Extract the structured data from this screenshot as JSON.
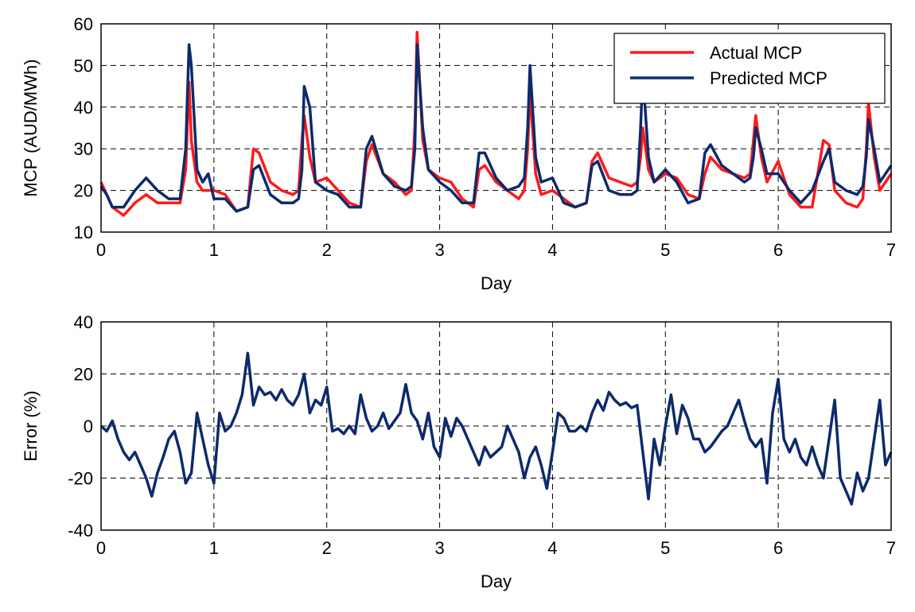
{
  "chart_data": [
    {
      "type": "line",
      "xlabel": "Day",
      "ylabel": "MCP (AUD/MWh)",
      "xlim": [
        0,
        7
      ],
      "ylim": [
        10,
        60
      ],
      "xticks": [
        0,
        1,
        2,
        3,
        4,
        5,
        6,
        7
      ],
      "yticks": [
        10,
        20,
        30,
        40,
        50,
        60
      ],
      "grid": true,
      "legend": "upper right",
      "x": [
        0,
        0.05,
        0.1,
        0.2,
        0.3,
        0.4,
        0.5,
        0.6,
        0.7,
        0.75,
        0.78,
        0.8,
        0.85,
        0.9,
        0.95,
        1.0,
        1.1,
        1.2,
        1.3,
        1.35,
        1.4,
        1.5,
        1.6,
        1.7,
        1.75,
        1.78,
        1.8,
        1.85,
        1.9,
        2.0,
        2.1,
        2.2,
        2.3,
        2.35,
        2.4,
        2.5,
        2.6,
        2.7,
        2.75,
        2.78,
        2.8,
        2.85,
        2.9,
        3.0,
        3.1,
        3.2,
        3.3,
        3.35,
        3.4,
        3.5,
        3.6,
        3.7,
        3.75,
        3.78,
        3.8,
        3.85,
        3.9,
        4.0,
        4.1,
        4.2,
        4.3,
        4.35,
        4.4,
        4.5,
        4.6,
        4.7,
        4.75,
        4.78,
        4.8,
        4.85,
        4.9,
        5.0,
        5.1,
        5.2,
        5.3,
        5.35,
        5.4,
        5.5,
        5.6,
        5.7,
        5.75,
        5.78,
        5.8,
        5.85,
        5.9,
        6.0,
        6.1,
        6.2,
        6.3,
        6.4,
        6.45,
        6.5,
        6.6,
        6.7,
        6.75,
        6.78,
        6.8,
        6.85,
        6.9,
        7.0
      ],
      "series": [
        {
          "name": "Actual MCP",
          "color": "#ff1a1a",
          "values": [
            22,
            19,
            16,
            14,
            17,
            19,
            17,
            17,
            17,
            25,
            46,
            32,
            22,
            20,
            20,
            20,
            19,
            15,
            16,
            30,
            29,
            22,
            20,
            19,
            20,
            32,
            38,
            28,
            22,
            23,
            20,
            17,
            16,
            27,
            31,
            24,
            22,
            19,
            20,
            35,
            58,
            32,
            25,
            23,
            22,
            18,
            16,
            25,
            26,
            22,
            20,
            18,
            20,
            30,
            44,
            24,
            19,
            20,
            18,
            16,
            17,
            27,
            29,
            23,
            22,
            21,
            22,
            28,
            35,
            25,
            22,
            24,
            23,
            19,
            18,
            24,
            28,
            25,
            24,
            23,
            24,
            32,
            38,
            28,
            22,
            27,
            19,
            16,
            16,
            32,
            31,
            20,
            17,
            16,
            18,
            30,
            41,
            28,
            20,
            24
          ]
        },
        {
          "name": "Predicted MCP",
          "color": "#0d2a6b",
          "values": [
            21,
            19,
            16,
            16,
            20,
            23,
            20,
            18,
            18,
            30,
            55,
            50,
            25,
            22,
            24,
            18,
            18,
            15,
            16,
            25,
            26,
            19,
            17,
            17,
            18,
            25,
            45,
            40,
            22,
            20,
            19,
            16,
            16,
            30,
            33,
            24,
            21,
            20,
            21,
            30,
            55,
            35,
            25,
            22,
            20,
            17,
            17,
            29,
            29,
            23,
            20,
            21,
            23,
            35,
            50,
            28,
            22,
            23,
            17,
            16,
            17,
            26,
            27,
            20,
            19,
            19,
            20,
            35,
            48,
            28,
            22,
            25,
            22,
            17,
            18,
            29,
            31,
            26,
            24,
            22,
            23,
            28,
            35,
            30,
            24,
            24,
            20,
            17,
            20,
            27,
            30,
            22,
            20,
            19,
            21,
            28,
            37,
            30,
            22,
            26
          ]
        }
      ]
    },
    {
      "type": "line",
      "xlabel": "Day",
      "ylabel": "Error (%)",
      "xlim": [
        0,
        7
      ],
      "ylim": [
        -40,
        40
      ],
      "xticks": [
        0,
        1,
        2,
        3,
        4,
        5,
        6,
        7
      ],
      "yticks": [
        -40,
        -20,
        0,
        20,
        40
      ],
      "grid": true,
      "color": "#0d2a6b",
      "x": [
        0,
        0.05,
        0.1,
        0.15,
        0.2,
        0.25,
        0.3,
        0.35,
        0.4,
        0.45,
        0.5,
        0.55,
        0.6,
        0.65,
        0.7,
        0.75,
        0.8,
        0.85,
        0.9,
        0.95,
        1.0,
        1.05,
        1.1,
        1.15,
        1.2,
        1.25,
        1.3,
        1.35,
        1.4,
        1.45,
        1.5,
        1.55,
        1.6,
        1.65,
        1.7,
        1.75,
        1.8,
        1.85,
        1.9,
        1.95,
        2.0,
        2.05,
        2.1,
        2.15,
        2.2,
        2.25,
        2.3,
        2.35,
        2.4,
        2.45,
        2.5,
        2.55,
        2.6,
        2.65,
        2.7,
        2.75,
        2.8,
        2.85,
        2.9,
        2.95,
        3.0,
        3.05,
        3.1,
        3.15,
        3.2,
        3.25,
        3.3,
        3.35,
        3.4,
        3.45,
        3.5,
        3.55,
        3.6,
        3.65,
        3.7,
        3.75,
        3.8,
        3.85,
        3.9,
        3.95,
        4.0,
        4.05,
        4.1,
        4.15,
        4.2,
        4.25,
        4.3,
        4.35,
        4.4,
        4.45,
        4.5,
        4.55,
        4.6,
        4.65,
        4.7,
        4.75,
        4.8,
        4.85,
        4.9,
        4.95,
        5.0,
        5.05,
        5.1,
        5.15,
        5.2,
        5.25,
        5.3,
        5.35,
        5.4,
        5.45,
        5.5,
        5.55,
        5.6,
        5.65,
        5.7,
        5.75,
        5.8,
        5.85,
        5.9,
        5.95,
        6.0,
        6.05,
        6.1,
        6.15,
        6.2,
        6.25,
        6.3,
        6.35,
        6.4,
        6.45,
        6.5,
        6.55,
        6.6,
        6.65,
        6.7,
        6.75,
        6.8,
        6.85,
        6.9,
        6.95,
        7.0
      ],
      "values": [
        0,
        -2,
        2,
        -5,
        -10,
        -13,
        -10,
        -15,
        -20,
        -27,
        -18,
        -12,
        -5,
        -2,
        -10,
        -22,
        -18,
        5,
        -5,
        -15,
        -22,
        5,
        -2,
        0,
        5,
        12,
        28,
        8,
        15,
        12,
        13,
        10,
        14,
        10,
        8,
        12,
        20,
        5,
        10,
        8,
        15,
        -2,
        -1,
        -3,
        0,
        -3,
        12,
        3,
        -2,
        0,
        5,
        -1,
        2,
        5,
        16,
        5,
        2,
        -5,
        5,
        -8,
        -12,
        3,
        -4,
        3,
        0,
        -5,
        -10,
        -15,
        -8,
        -12,
        -10,
        -8,
        0,
        -5,
        -10,
        -20,
        -12,
        -8,
        -15,
        -24,
        -10,
        5,
        3,
        -2,
        -2,
        0,
        -2,
        5,
        10,
        6,
        13,
        10,
        8,
        9,
        7,
        8,
        -10,
        -28,
        -5,
        -15,
        0,
        12,
        -3,
        8,
        3,
        -5,
        -5,
        -10,
        -8,
        -5,
        -2,
        0,
        5,
        10,
        2,
        -5,
        -8,
        -5,
        -22,
        5,
        18,
        -5,
        -10,
        -5,
        -12,
        -15,
        -8,
        -15,
        -20,
        -5,
        10,
        -20,
        -25,
        -30,
        -18,
        -25,
        -20,
        -5,
        10,
        -15,
        -10
      ]
    }
  ]
}
